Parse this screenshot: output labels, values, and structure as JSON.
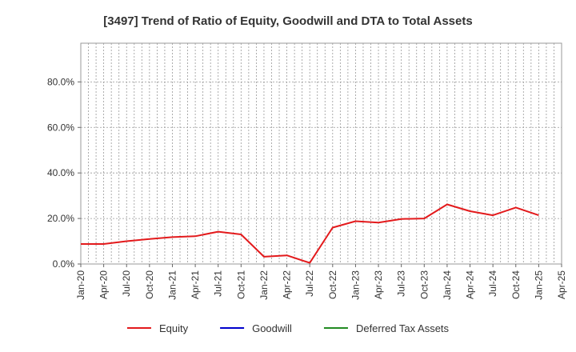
{
  "chart_data": {
    "type": "line",
    "title": "[3497]  Trend of Ratio of Equity, Goodwill and DTA to Total Assets",
    "xlabel": "",
    "ylabel": "",
    "x_ticks": [
      "Jan-20",
      "Apr-20",
      "Jul-20",
      "Oct-20",
      "Jan-21",
      "Apr-21",
      "Jul-21",
      "Oct-21",
      "Jan-22",
      "Apr-22",
      "Jul-22",
      "Oct-22",
      "Jan-23",
      "Apr-23",
      "Jul-23",
      "Oct-23",
      "Jan-24",
      "Apr-24",
      "Jul-24",
      "Oct-24",
      "Jan-25",
      "Apr-25"
    ],
    "y_ticks": [
      "0.0%",
      "20.0%",
      "40.0%",
      "60.0%",
      "80.0%"
    ],
    "ylim": [
      0,
      97
    ],
    "y_unit": "%",
    "grid": true,
    "legend_position": "bottom",
    "series": [
      {
        "name": "Equity",
        "color": "#e31a1c",
        "x": [
          "Jan-20",
          "Apr-20",
          "Jul-20",
          "Oct-20",
          "Jan-21",
          "Apr-21",
          "Jul-21",
          "Oct-21",
          "Jan-22",
          "Apr-22",
          "Jul-22",
          "Oct-22",
          "Jan-23",
          "Apr-23",
          "Jul-23",
          "Oct-23",
          "Jan-24",
          "Apr-24",
          "Jul-24",
          "Oct-24",
          "Jan-25"
        ],
        "values": [
          8.8,
          8.8,
          10.0,
          11.0,
          11.8,
          12.2,
          14.2,
          13.0,
          3.2,
          3.8,
          0.5,
          16.0,
          18.8,
          18.2,
          19.8,
          20.0,
          26.2,
          23.2,
          21.4,
          24.8,
          21.4
        ]
      },
      {
        "name": "Goodwill",
        "color": "#0000cc",
        "x": [],
        "values": []
      },
      {
        "name": "Deferred Tax Assets",
        "color": "#228b22",
        "x": [],
        "values": []
      }
    ]
  }
}
